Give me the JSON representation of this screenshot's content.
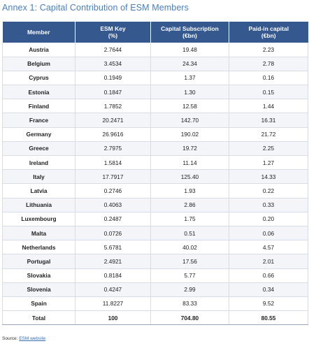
{
  "title": "Annex 1: Capital Contribution of ESM Members",
  "table": {
    "headers": {
      "member": "Member",
      "key_line1": "ESM Key",
      "key_line2": "(%)",
      "sub_line1": "Capital Subscription",
      "sub_line2": "(€bn)",
      "paid_line1": "Paid-in capital",
      "paid_line2": "(€bn)"
    },
    "rows": [
      {
        "member": "Austria",
        "key": "2.7644",
        "subscription": "19.48",
        "paid_in": "2.23"
      },
      {
        "member": "Belgium",
        "key": "3.4534",
        "subscription": "24.34",
        "paid_in": "2.78"
      },
      {
        "member": "Cyprus",
        "key": "0.1949",
        "subscription": "1.37",
        "paid_in": "0.16"
      },
      {
        "member": "Estonia",
        "key": "0.1847",
        "subscription": "1.30",
        "paid_in": "0.15"
      },
      {
        "member": "Finland",
        "key": "1.7852",
        "subscription": "12.58",
        "paid_in": "1.44"
      },
      {
        "member": "France",
        "key": "20.2471",
        "subscription": "142.70",
        "paid_in": "16.31"
      },
      {
        "member": "Germany",
        "key": "26.9616",
        "subscription": "190.02",
        "paid_in": "21.72"
      },
      {
        "member": "Greece",
        "key": "2.7975",
        "subscription": "19.72",
        "paid_in": "2.25"
      },
      {
        "member": "Ireland",
        "key": "1.5814",
        "subscription": "11.14",
        "paid_in": "1.27"
      },
      {
        "member": "Italy",
        "key": "17.7917",
        "subscription": "125.40",
        "paid_in": "14.33"
      },
      {
        "member": "Latvia",
        "key": "0.2746",
        "subscription": "1.93",
        "paid_in": "0.22"
      },
      {
        "member": "Lithuania",
        "key": "0.4063",
        "subscription": "2.86",
        "paid_in": "0.33"
      },
      {
        "member": "Luxembourg",
        "key": "0.2487",
        "subscription": "1.75",
        "paid_in": "0.20"
      },
      {
        "member": "Malta",
        "key": "0.0726",
        "subscription": "0.51",
        "paid_in": "0.06"
      },
      {
        "member": "Netherlands",
        "key": "5.6781",
        "subscription": "40.02",
        "paid_in": "4.57"
      },
      {
        "member": "Portugal",
        "key": "2.4921",
        "subscription": "17.56",
        "paid_in": "2.01"
      },
      {
        "member": "Slovakia",
        "key": "0.8184",
        "subscription": "5.77",
        "paid_in": "0.66"
      },
      {
        "member": "Slovenia",
        "key": "0.4247",
        "subscription": "2.99",
        "paid_in": "0.34"
      },
      {
        "member": "Spain",
        "key": "11.8227",
        "subscription": "83.33",
        "paid_in": "9.52"
      }
    ],
    "total": {
      "member": "Total",
      "key": "100",
      "subscription": "704.80",
      "paid_in": "80.55"
    }
  },
  "source": {
    "label": "Source:",
    "link_text": "ESM website"
  }
}
